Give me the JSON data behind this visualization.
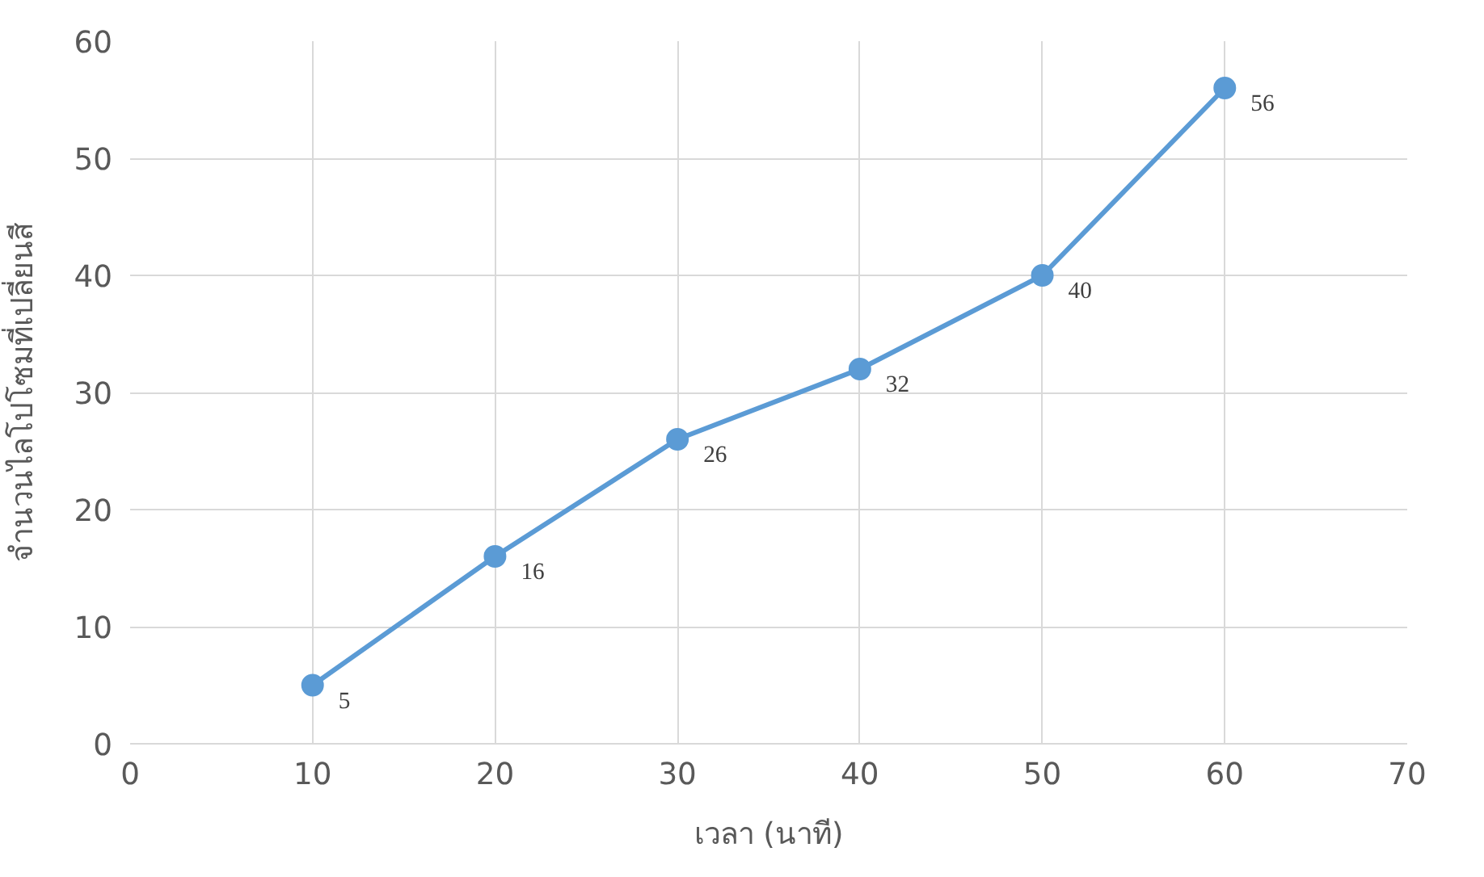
{
  "chart_data": {
    "type": "line",
    "xlabel": "เวลา (นาที)",
    "ylabel": "จำนวนไลโปโซมที่เปลี่ยนสี",
    "x": [
      10,
      20,
      30,
      40,
      50,
      60
    ],
    "series": [
      {
        "color": "#5b9bd5",
        "values": [
          5,
          16,
          26,
          32,
          40,
          56
        ]
      }
    ],
    "xlim": [
      0,
      70
    ],
    "xticks": [
      0,
      10,
      20,
      30,
      40,
      50,
      60,
      70
    ],
    "ylim": [
      0,
      60
    ],
    "yticks": [
      0,
      10,
      20,
      30,
      40,
      50,
      60
    ],
    "grid": true,
    "marker": "circle",
    "line_style": "solid",
    "data_labels": true
  }
}
